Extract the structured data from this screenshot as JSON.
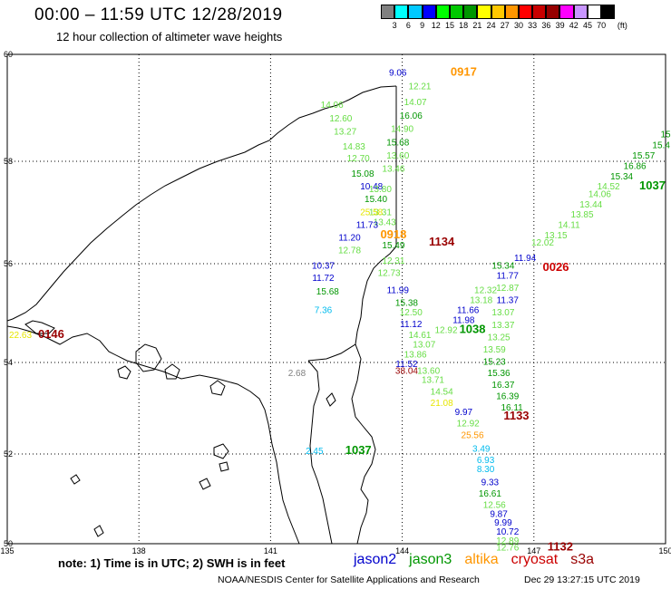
{
  "header": {
    "title": "00:00 – 11:59 UTC 12/28/2019",
    "subtitle": "12 hour collection of altimeter wave heights"
  },
  "colorbar": {
    "colors": [
      "#808080",
      "#00ffff",
      "#00c8ff",
      "#0000ff",
      "#00ff00",
      "#00c800",
      "#009600",
      "#ffff00",
      "#ffc800",
      "#ff9600",
      "#ff0000",
      "#c80000",
      "#960000",
      "#ff00ff",
      "#c896ff",
      "#ffffff",
      "#000000"
    ],
    "labels": [
      "3",
      "6",
      "9",
      "12",
      "15",
      "18",
      "21",
      "24",
      "27",
      "30",
      "33",
      "36",
      "39",
      "42",
      "45",
      "70",
      "(ft)"
    ]
  },
  "axes": {
    "lon_ticks": [
      "135",
      "138",
      "141",
      "144",
      "147",
      "150"
    ],
    "lat_ticks": [
      "50",
      "52",
      "54",
      "56",
      "58",
      "60"
    ]
  },
  "series_colors": {
    "jason2": "#0000cc",
    "jason3": "#009600",
    "jason3_light": "#66dd44",
    "altika": "#ff9600",
    "cryosat": "#cc0000",
    "s3a": "#990000",
    "yellow": "#e6e600",
    "cyan": "#00bbee",
    "gray": "#808080"
  },
  "observations": [
    {
      "text": "9.06",
      "series": "jason2",
      "lon": 143.9,
      "lat": 59.6
    },
    {
      "text": "0917",
      "series": "altika",
      "lon": 145.4,
      "lat": 59.6
    },
    {
      "text": "12.21",
      "series": "jason3_light",
      "lon": 144.4,
      "lat": 59.35
    },
    {
      "text": "14.07",
      "series": "jason3_light",
      "lon": 144.3,
      "lat": 59.05
    },
    {
      "text": "16.06",
      "series": "jason3",
      "lon": 144.2,
      "lat": 58.8
    },
    {
      "text": "14.06",
      "series": "jason3_light",
      "lon": 142.4,
      "lat": 59.0
    },
    {
      "text": "12.60",
      "series": "jason3_light",
      "lon": 142.6,
      "lat": 58.75
    },
    {
      "text": "14.90",
      "series": "jason3_light",
      "lon": 144.0,
      "lat": 58.55
    },
    {
      "text": "13.27",
      "series": "jason3_light",
      "lon": 142.7,
      "lat": 58.5
    },
    {
      "text": "15.68",
      "series": "jason3",
      "lon": 143.9,
      "lat": 58.3
    },
    {
      "text": "14.83",
      "series": "jason3_light",
      "lon": 142.9,
      "lat": 58.22
    },
    {
      "text": "12.70",
      "series": "jason3_light",
      "lon": 143.0,
      "lat": 58.0
    },
    {
      "text": "13.60",
      "series": "jason3_light",
      "lon": 143.9,
      "lat": 58.05
    },
    {
      "text": "15.08",
      "series": "jason3",
      "lon": 143.1,
      "lat": 57.7
    },
    {
      "text": "13.46",
      "series": "jason3_light",
      "lon": 143.8,
      "lat": 57.8
    },
    {
      "text": "10.48",
      "series": "jason2",
      "lon": 143.3,
      "lat": 57.45
    },
    {
      "text": "13.80",
      "series": "jason3_light",
      "lon": 143.5,
      "lat": 57.4
    },
    {
      "text": "15.40",
      "series": "jason3",
      "lon": 143.4,
      "lat": 57.2
    },
    {
      "text": "13.31",
      "series": "jason3_light",
      "lon": 143.5,
      "lat": 56.95
    },
    {
      "text": "25.58",
      "series": "yellow",
      "lon": 143.3,
      "lat": 56.95
    },
    {
      "text": "13.43",
      "series": "jason3_light",
      "lon": 143.6,
      "lat": 56.75
    },
    {
      "text": "11.73",
      "series": "jason2",
      "lon": 143.2,
      "lat": 56.7
    },
    {
      "text": "0918",
      "series": "altika",
      "lon": 143.8,
      "lat": 56.5
    },
    {
      "text": "11.20",
      "series": "jason2",
      "lon": 142.8,
      "lat": 56.45
    },
    {
      "text": "15.49",
      "series": "jason3",
      "lon": 143.8,
      "lat": 56.3
    },
    {
      "text": "1134",
      "series": "s3a",
      "lon": 144.9,
      "lat": 56.35
    },
    {
      "text": "12.78",
      "series": "jason3_light",
      "lon": 142.8,
      "lat": 56.2
    },
    {
      "text": "12.31",
      "series": "jason3_light",
      "lon": 143.8,
      "lat": 56.0
    },
    {
      "text": "10.37",
      "series": "jason2",
      "lon": 142.2,
      "lat": 55.9
    },
    {
      "text": "12.73",
      "series": "jason3_light",
      "lon": 143.7,
      "lat": 55.75
    },
    {
      "text": "11.72",
      "series": "jason2",
      "lon": 142.2,
      "lat": 55.65
    },
    {
      "text": "11.99",
      "series": "jason2",
      "lon": 143.9,
      "lat": 55.4
    },
    {
      "text": "15.68",
      "series": "jason3",
      "lon": 142.3,
      "lat": 55.38
    },
    {
      "text": "15.38",
      "series": "jason3",
      "lon": 144.1,
      "lat": 55.15
    },
    {
      "text": "7.36",
      "series": "cyan",
      "lon": 142.2,
      "lat": 55.0
    },
    {
      "text": "12.50",
      "series": "jason3_light",
      "lon": 144.2,
      "lat": 54.95
    },
    {
      "text": "11.12",
      "series": "jason2",
      "lon": 144.2,
      "lat": 54.72
    },
    {
      "text": "14.61",
      "series": "jason3_light",
      "lon": 144.4,
      "lat": 54.5
    },
    {
      "text": "13.07",
      "series": "jason3_light",
      "lon": 144.5,
      "lat": 54.3
    },
    {
      "text": "13.86",
      "series": "jason3_light",
      "lon": 144.3,
      "lat": 54.1
    },
    {
      "text": "11.52",
      "series": "jason2",
      "lon": 144.1,
      "lat": 53.9
    },
    {
      "text": "38.04",
      "series": "s3a",
      "lon": 144.1,
      "lat": 53.75
    },
    {
      "text": "13.60",
      "series": "jason3_light",
      "lon": 144.6,
      "lat": 53.75
    },
    {
      "text": "13.71",
      "series": "jason3_light",
      "lon": 144.7,
      "lat": 53.55
    },
    {
      "text": "14.54",
      "series": "jason3_light",
      "lon": 144.9,
      "lat": 53.3
    },
    {
      "text": "21.08",
      "series": "yellow",
      "lon": 144.9,
      "lat": 53.05
    },
    {
      "text": "9.97",
      "series": "jason2",
      "lon": 145.4,
      "lat": 52.85
    },
    {
      "text": "12.92",
      "series": "jason3_light",
      "lon": 145.5,
      "lat": 52.6
    },
    {
      "text": "25.56",
      "series": "altika",
      "lon": 145.6,
      "lat": 52.35
    },
    {
      "text": "3.49",
      "series": "cyan",
      "lon": 145.8,
      "lat": 52.05
    },
    {
      "text": "6.93",
      "series": "cyan",
      "lon": 145.9,
      "lat": 51.8
    },
    {
      "text": "8.30",
      "series": "cyan",
      "lon": 145.9,
      "lat": 51.6
    },
    {
      "text": "9.33",
      "series": "jason2",
      "lon": 146.0,
      "lat": 51.3
    },
    {
      "text": "16.61",
      "series": "jason3",
      "lon": 146.0,
      "lat": 51.05
    },
    {
      "text": "12.56",
      "series": "jason3_light",
      "lon": 146.1,
      "lat": 50.8
    },
    {
      "text": "9.87",
      "series": "jason2",
      "lon": 146.2,
      "lat": 50.6
    },
    {
      "text": "9.99",
      "series": "jason2",
      "lon": 146.3,
      "lat": 50.4
    },
    {
      "text": "10.72",
      "series": "jason2",
      "lon": 146.4,
      "lat": 50.2
    },
    {
      "text": "12.89",
      "series": "jason3_light",
      "lon": 146.4,
      "lat": 50.0
    },
    {
      "text": "12.76",
      "series": "jason3_light",
      "lon": 146.4,
      "lat": 49.85
    },
    {
      "text": "1132",
      "series": "s3a",
      "lon": 147.6,
      "lat": 49.85
    },
    {
      "text": "15.23",
      "series": "jason3",
      "lon": 146.1,
      "lat": 53.95
    },
    {
      "text": "15.36",
      "series": "jason3",
      "lon": 146.2,
      "lat": 53.7
    },
    {
      "text": "16.37",
      "series": "jason3",
      "lon": 146.3,
      "lat": 53.45
    },
    {
      "text": "16.39",
      "series": "jason3",
      "lon": 146.4,
      "lat": 53.2
    },
    {
      "text": "16.11",
      "series": "jason3",
      "lon": 146.5,
      "lat": 52.95
    },
    {
      "text": "1133",
      "series": "s3a",
      "lon": 146.6,
      "lat": 52.75
    },
    {
      "text": "13.59",
      "series": "jason3_light",
      "lon": 146.1,
      "lat": 54.2
    },
    {
      "text": "13.25",
      "series": "jason3_light",
      "lon": 146.2,
      "lat": 54.45
    },
    {
      "text": "13.37",
      "series": "jason3_light",
      "lon": 146.3,
      "lat": 54.7
    },
    {
      "text": "13.07",
      "series": "jason3_light",
      "lon": 146.3,
      "lat": 54.95
    },
    {
      "text": "11.37",
      "series": "jason2",
      "lon": 146.4,
      "lat": 55.2
    },
    {
      "text": "11.66",
      "series": "jason2",
      "lon": 145.5,
      "lat": 55.0
    },
    {
      "text": "11.98",
      "series": "jason2",
      "lon": 145.4,
      "lat": 54.8
    },
    {
      "text": "12.92",
      "series": "jason3_light",
      "lon": 145.0,
      "lat": 54.6
    },
    {
      "text": "1038",
      "series": "jason3",
      "lon": 145.6,
      "lat": 54.6
    },
    {
      "text": "13.18",
      "series": "jason3_light",
      "lon": 145.8,
      "lat": 55.2
    },
    {
      "text": "12.32",
      "series": "jason3_light",
      "lon": 145.9,
      "lat": 55.4
    },
    {
      "text": "12.87",
      "series": "jason3_light",
      "lon": 146.4,
      "lat": 55.45
    },
    {
      "text": "11.77",
      "series": "jason2",
      "lon": 146.4,
      "lat": 55.7
    },
    {
      "text": "15.34",
      "series": "jason3",
      "lon": 146.3,
      "lat": 55.9
    },
    {
      "text": "11.94",
      "series": "jason2",
      "lon": 146.8,
      "lat": 56.05
    },
    {
      "text": "0026",
      "series": "cryosat",
      "lon": 147.5,
      "lat": 55.85
    },
    {
      "text": "12.02",
      "series": "jason3_light",
      "lon": 147.2,
      "lat": 56.35
    },
    {
      "text": "13.15",
      "series": "jason3_light",
      "lon": 147.5,
      "lat": 56.5
    },
    {
      "text": "14.11",
      "series": "jason3_light",
      "lon": 147.8,
      "lat": 56.7
    },
    {
      "text": "13.85",
      "series": "jason3_light",
      "lon": 148.1,
      "lat": 56.9
    },
    {
      "text": "13.44",
      "series": "jason3_light",
      "lon": 148.3,
      "lat": 57.1
    },
    {
      "text": "14.06",
      "series": "jason3_light",
      "lon": 148.5,
      "lat": 57.3
    },
    {
      "text": "14.52",
      "series": "jason3_light",
      "lon": 148.7,
      "lat": 57.45
    },
    {
      "text": "15.34",
      "series": "jason3",
      "lon": 149.0,
      "lat": 57.65
    },
    {
      "text": "16.86",
      "series": "jason3",
      "lon": 149.3,
      "lat": 57.85
    },
    {
      "text": "15.57",
      "series": "jason3",
      "lon": 149.5,
      "lat": 58.05
    },
    {
      "text": "1037",
      "series": "jason3",
      "lon": 149.7,
      "lat": 57.45
    },
    {
      "text": "15.4",
      "series": "jason3",
      "lon": 149.9,
      "lat": 58.25
    },
    {
      "text": "15",
      "series": "jason3",
      "lon": 150.0,
      "lat": 58.45
    },
    {
      "text": "22.63",
      "series": "yellow",
      "lon": 135.3,
      "lat": 54.5
    },
    {
      "text": "0146",
      "series": "s3a",
      "lon": 136.0,
      "lat": 54.5
    },
    {
      "text": "2.68",
      "series": "gray",
      "lon": 141.6,
      "lat": 53.7
    },
    {
      "text": "2.45",
      "series": "cyan",
      "lon": 142.0,
      "lat": 52.0
    },
    {
      "text": "1037",
      "series": "jason3",
      "lon": 143.0,
      "lat": 52.0
    }
  ],
  "footer": {
    "note": "note: 1) Time is in UTC; 2) SWH is in feet",
    "legend": [
      {
        "label": "jason2",
        "color": "#0000cc"
      },
      {
        "label": "jason3",
        "color": "#009600"
      },
      {
        "label": "altika",
        "color": "#ff9600"
      },
      {
        "label": "cryosat",
        "color": "#cc0000"
      },
      {
        "label": "s3a",
        "color": "#990000"
      }
    ],
    "credit": "NOAA/NESDIS Center for Satellite Applications and Research",
    "stamp": "Dec 29 13:27:15 UTC 2019"
  }
}
